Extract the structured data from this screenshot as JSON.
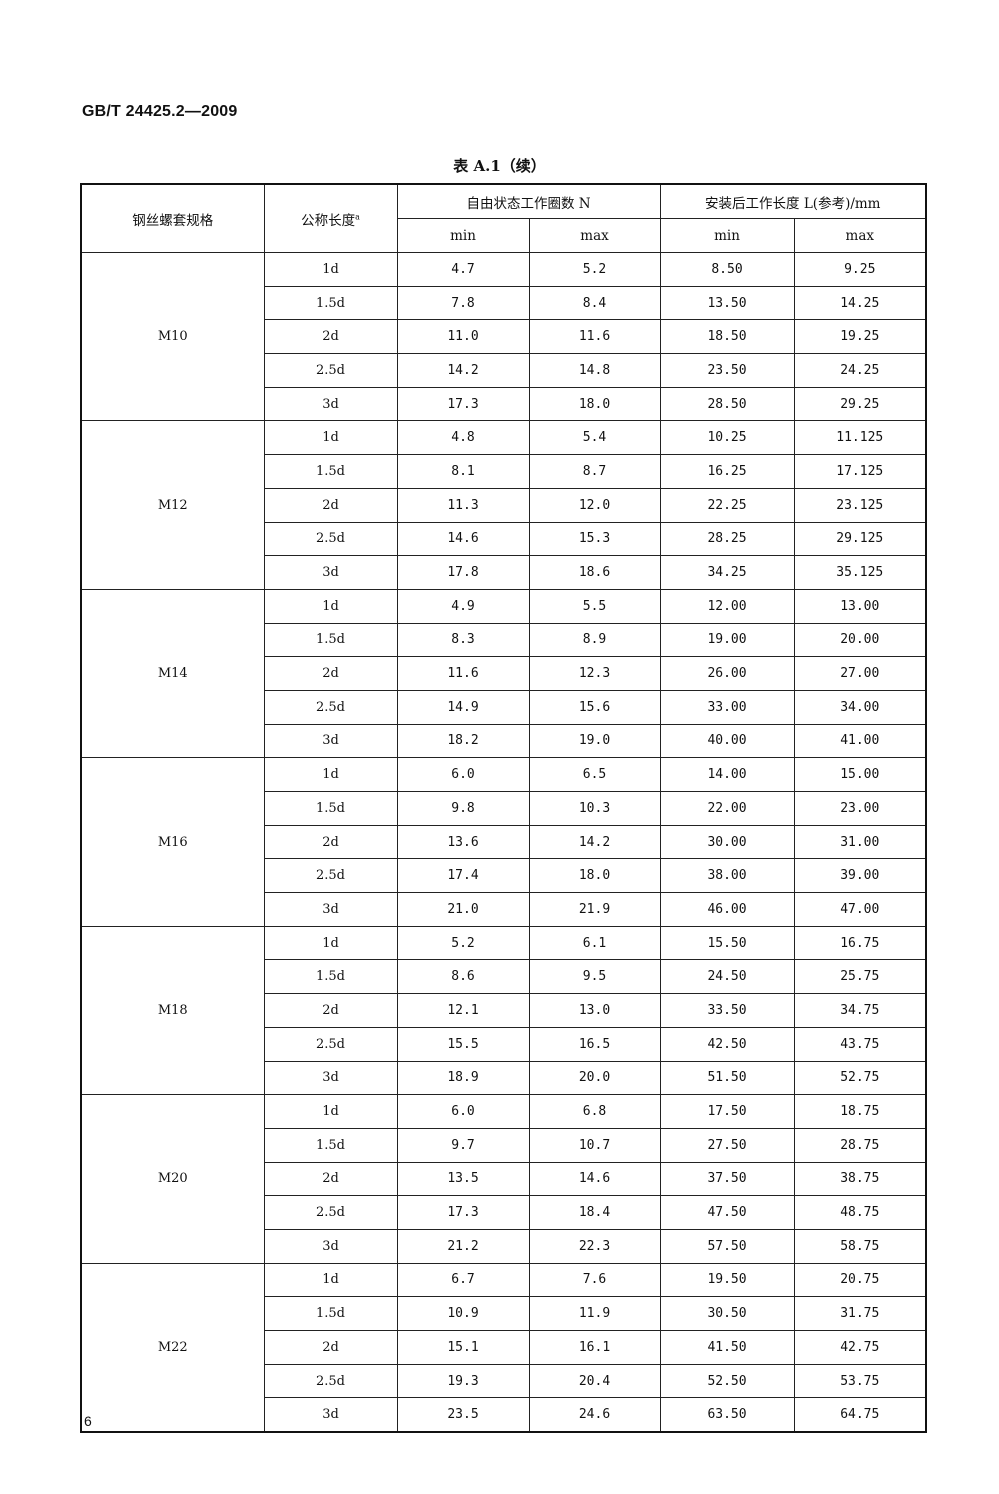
{
  "header": {
    "standard_number": "GB/T 24425.2—2009"
  },
  "table": {
    "caption": "表 A.1（续）",
    "headers": {
      "spec": "钢丝螺套规格",
      "nominal_length": "公称长度",
      "nominal_length_note": "a",
      "free_coils": "自由状态工作圈数 N",
      "installed_length": "安装后工作长度 L(参考)/mm",
      "min": "min",
      "max": "max"
    },
    "groups": [
      {
        "spec": "M10",
        "rows": [
          [
            "1d",
            "4.7",
            "5.2",
            "8.50",
            "9.25"
          ],
          [
            "1.5d",
            "7.8",
            "8.4",
            "13.50",
            "14.25"
          ],
          [
            "2d",
            "11.0",
            "11.6",
            "18.50",
            "19.25"
          ],
          [
            "2.5d",
            "14.2",
            "14.8",
            "23.50",
            "24.25"
          ],
          [
            "3d",
            "17.3",
            "18.0",
            "28.50",
            "29.25"
          ]
        ]
      },
      {
        "spec": "M12",
        "rows": [
          [
            "1d",
            "4.8",
            "5.4",
            "10.25",
            "11.125"
          ],
          [
            "1.5d",
            "8.1",
            "8.7",
            "16.25",
            "17.125"
          ],
          [
            "2d",
            "11.3",
            "12.0",
            "22.25",
            "23.125"
          ],
          [
            "2.5d",
            "14.6",
            "15.3",
            "28.25",
            "29.125"
          ],
          [
            "3d",
            "17.8",
            "18.6",
            "34.25",
            "35.125"
          ]
        ]
      },
      {
        "spec": "M14",
        "rows": [
          [
            "1d",
            "4.9",
            "5.5",
            "12.00",
            "13.00"
          ],
          [
            "1.5d",
            "8.3",
            "8.9",
            "19.00",
            "20.00"
          ],
          [
            "2d",
            "11.6",
            "12.3",
            "26.00",
            "27.00"
          ],
          [
            "2.5d",
            "14.9",
            "15.6",
            "33.00",
            "34.00"
          ],
          [
            "3d",
            "18.2",
            "19.0",
            "40.00",
            "41.00"
          ]
        ]
      },
      {
        "spec": "M16",
        "rows": [
          [
            "1d",
            "6.0",
            "6.5",
            "14.00",
            "15.00"
          ],
          [
            "1.5d",
            "9.8",
            "10.3",
            "22.00",
            "23.00"
          ],
          [
            "2d",
            "13.6",
            "14.2",
            "30.00",
            "31.00"
          ],
          [
            "2.5d",
            "17.4",
            "18.0",
            "38.00",
            "39.00"
          ],
          [
            "3d",
            "21.0",
            "21.9",
            "46.00",
            "47.00"
          ]
        ]
      },
      {
        "spec": "M18",
        "rows": [
          [
            "1d",
            "5.2",
            "6.1",
            "15.50",
            "16.75"
          ],
          [
            "1.5d",
            "8.6",
            "9.5",
            "24.50",
            "25.75"
          ],
          [
            "2d",
            "12.1",
            "13.0",
            "33.50",
            "34.75"
          ],
          [
            "2.5d",
            "15.5",
            "16.5",
            "42.50",
            "43.75"
          ],
          [
            "3d",
            "18.9",
            "20.0",
            "51.50",
            "52.75"
          ]
        ]
      },
      {
        "spec": "M20",
        "rows": [
          [
            "1d",
            "6.0",
            "6.8",
            "17.50",
            "18.75"
          ],
          [
            "1.5d",
            "9.7",
            "10.7",
            "27.50",
            "28.75"
          ],
          [
            "2d",
            "13.5",
            "14.6",
            "37.50",
            "38.75"
          ],
          [
            "2.5d",
            "17.3",
            "18.4",
            "47.50",
            "48.75"
          ],
          [
            "3d",
            "21.2",
            "22.3",
            "57.50",
            "58.75"
          ]
        ]
      },
      {
        "spec": "M22",
        "rows": [
          [
            "1d",
            "6.7",
            "7.6",
            "19.50",
            "20.75"
          ],
          [
            "1.5d",
            "10.9",
            "11.9",
            "30.50",
            "31.75"
          ],
          [
            "2d",
            "15.1",
            "16.1",
            "41.50",
            "42.75"
          ],
          [
            "2.5d",
            "19.3",
            "20.4",
            "52.50",
            "53.75"
          ],
          [
            "3d",
            "23.5",
            "24.6",
            "63.50",
            "64.75"
          ]
        ]
      }
    ]
  },
  "footer": {
    "page_number": "6"
  }
}
